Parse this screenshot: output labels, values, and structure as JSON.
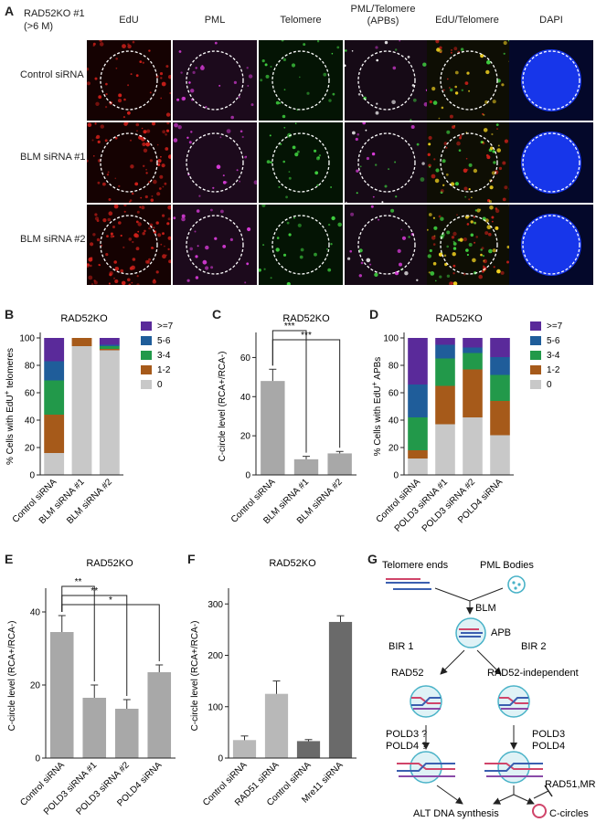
{
  "panel_labels": {
    "a": "A",
    "b": "B",
    "c": "C",
    "d": "D",
    "e": "E",
    "f": "F",
    "g": "G"
  },
  "panel_a": {
    "condition_line1": "RAD52KO #1",
    "condition_line2": "(>6 M)",
    "columns": [
      "EdU",
      "PML",
      "Telomere",
      "PML/Telomere",
      "EdU/Telomere",
      "DAPI"
    ],
    "column_sub": "(APBs)",
    "rows": [
      "Control siRNA",
      "BLM siRNA #1",
      "BLM siRNA #2"
    ],
    "channel_colors": {
      "edu": "#d0201a",
      "pml": "#d63bd6",
      "telomere": "#3fcf3f",
      "dapi": "#1a3cff"
    }
  },
  "chart_data": [
    {
      "id": "B",
      "type": "bar",
      "stacked": true,
      "title": "RAD52KO",
      "ylabel": "% Cells with EdU+ telomeres",
      "ylim": [
        0,
        100
      ],
      "yticks": [
        0,
        20,
        40,
        60,
        80,
        100
      ],
      "categories": [
        "Control siRNA",
        "BLM siRNA #1",
        "BLM siRNA #2"
      ],
      "series": [
        {
          "name": "0",
          "color": "#c8c8c8",
          "values": [
            16,
            94,
            91
          ]
        },
        {
          "name": "1-2",
          "color": "#a65a1a",
          "values": [
            28,
            6,
            1
          ]
        },
        {
          "name": "3-4",
          "color": "#22994a",
          "values": [
            25,
            0,
            2
          ]
        },
        {
          "name": "5-6",
          "color": "#1f5d9a",
          "values": [
            14,
            0,
            1
          ]
        },
        {
          "name": ">=7",
          "color": "#5a2a9a",
          "values": [
            17,
            0,
            5
          ]
        }
      ],
      "legend_position": "right"
    },
    {
      "id": "C",
      "type": "bar",
      "title": "RAD52KO",
      "ylabel": "C-circle level (RCA+/RCA-)",
      "ylim": [
        0,
        70
      ],
      "yticks": [
        0,
        20,
        40,
        60
      ],
      "categories": [
        "Control siRNA",
        "BLM siRNA #1",
        "BLM siRNA #2"
      ],
      "values": [
        48,
        8,
        11
      ],
      "errors": [
        6,
        1.5,
        1
      ],
      "colors": [
        "#a8a8a8",
        "#a8a8a8",
        "#a8a8a8"
      ],
      "significance": [
        {
          "from": 0,
          "to": 1,
          "label": "***"
        },
        {
          "from": 0,
          "to": 2,
          "label": "***"
        }
      ]
    },
    {
      "id": "D",
      "type": "bar",
      "stacked": true,
      "title": "RAD52KO",
      "ylabel": "% Cells with EdU+ APBs",
      "ylim": [
        0,
        100
      ],
      "yticks": [
        0,
        20,
        40,
        60,
        80,
        100
      ],
      "categories": [
        "Control siRNA",
        "POLD3 siRNA #1",
        "POLD3 siRNA #2",
        "POLD4 siRNA"
      ],
      "series": [
        {
          "name": "0",
          "color": "#c8c8c8",
          "values": [
            12,
            37,
            42,
            29
          ]
        },
        {
          "name": "1-2",
          "color": "#a65a1a",
          "values": [
            6,
            28,
            35,
            25
          ]
        },
        {
          "name": "3-4",
          "color": "#22994a",
          "values": [
            24,
            20,
            12,
            19
          ]
        },
        {
          "name": "5-6",
          "color": "#1f5d9a",
          "values": [
            24,
            10,
            4,
            13
          ]
        },
        {
          "name": ">=7",
          "color": "#5a2a9a",
          "values": [
            34,
            5,
            7,
            14
          ]
        }
      ],
      "legend_position": "right"
    },
    {
      "id": "E",
      "type": "bar",
      "title": "RAD52KO",
      "ylabel": "C-circle level (RCA+/RCA-)",
      "ylim": [
        0,
        45
      ],
      "yticks": [
        0,
        20,
        40
      ],
      "categories": [
        "Control siRNA",
        "POLD3 siRNA #1",
        "POLD3 siRNA #2",
        "POLD4 siRNA"
      ],
      "values": [
        34.5,
        16.5,
        13.5,
        23.5
      ],
      "errors": [
        4.5,
        3.5,
        2.5,
        2
      ],
      "colors": [
        "#a8a8a8",
        "#a8a8a8",
        "#a8a8a8",
        "#a8a8a8"
      ],
      "significance": [
        {
          "from": 0,
          "to": 1,
          "label": "**"
        },
        {
          "from": 0,
          "to": 2,
          "label": "**"
        },
        {
          "from": 0,
          "to": 3,
          "label": "*"
        }
      ]
    },
    {
      "id": "F",
      "type": "bar",
      "title": "RAD52KO",
      "ylabel": "C-circle level (RCA+/RCA-)",
      "ylim": [
        0,
        320
      ],
      "yticks": [
        0,
        100,
        200,
        300
      ],
      "categories": [
        "Control siRNA",
        "RAD51 siRNA",
        "Control siRNA",
        "Mre11 siRNA"
      ],
      "values": [
        35,
        125,
        33,
        265
      ],
      "errors": [
        8,
        25,
        3,
        12
      ],
      "colors": [
        "#b8b8b8",
        "#b8b8b8",
        "#6a6a6a",
        "#6a6a6a"
      ]
    }
  ],
  "panel_g": {
    "telomere_ends": "Telomere ends",
    "pml_bodies": "PML Bodies",
    "blm": "BLM",
    "apb": "APB",
    "bir1": "BIR 1",
    "bir2": "BIR 2",
    "rad52": "RAD52",
    "rad52_independent": "RAD52-independent",
    "pold3_q": "POLD3 ?",
    "pold4_q": "POLD4 ?",
    "pold3": "POLD3",
    "pold4": "POLD4",
    "rad51_mre11": "RAD51,MRE11",
    "alt_synthesis": "ALT DNA synthesis",
    "c_circles": "C-circles"
  }
}
